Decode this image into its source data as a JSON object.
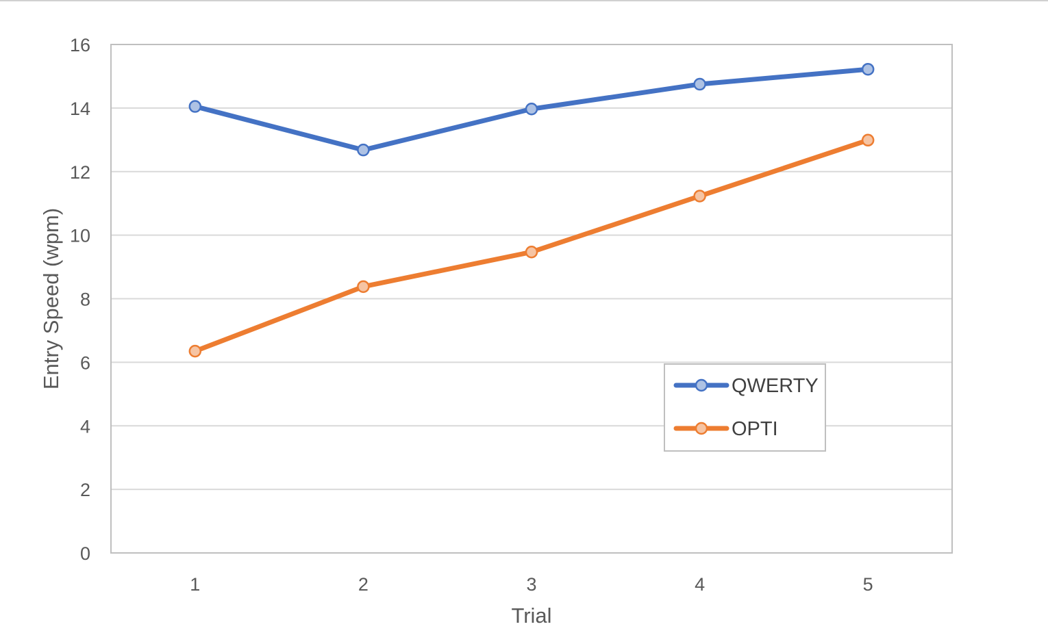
{
  "chart_data": {
    "type": "line",
    "title": "",
    "xlabel": "Trial",
    "ylabel": "Entry Speed (wpm)",
    "categories": [
      "1",
      "2",
      "3",
      "4",
      "5"
    ],
    "ylim": [
      0,
      16
    ],
    "yticks": [
      0,
      2,
      4,
      6,
      8,
      10,
      12,
      14,
      16
    ],
    "ytick_labels": [
      "0",
      "2",
      "4",
      "6",
      "8",
      "10",
      "12",
      "14",
      "16"
    ],
    "grid": true,
    "legend_position": "lower-right inside plot",
    "series": [
      {
        "name": "QWERTY",
        "values": [
          14.05,
          12.68,
          13.97,
          14.75,
          15.22
        ],
        "color": "#4472c4",
        "marker_fill": "#aec2e4"
      },
      {
        "name": "OPTI",
        "values": [
          6.35,
          8.38,
          9.47,
          11.23,
          12.99
        ],
        "color": "#ed7d31",
        "marker_fill": "#f6c4a3"
      }
    ]
  },
  "colors": {
    "grid": "#d9d9d9",
    "frame": "#bfbfbf",
    "text": "#595959"
  }
}
